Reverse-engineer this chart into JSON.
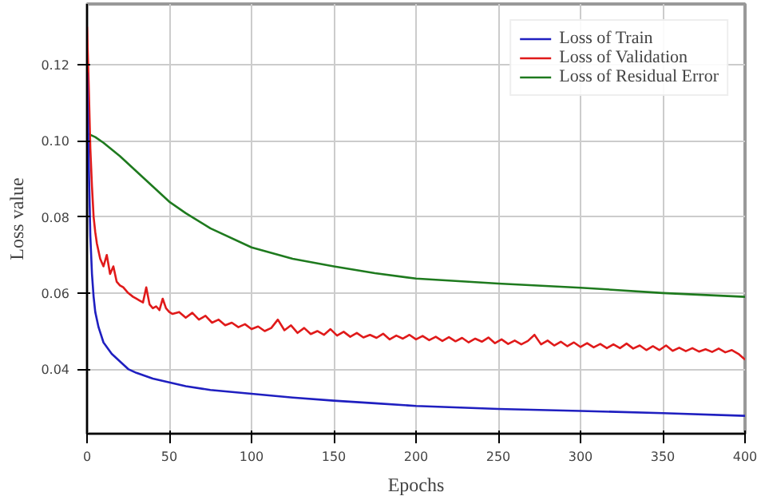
{
  "chart_data": {
    "type": "line",
    "xlabel": "Epochs",
    "ylabel": "Loss value",
    "xlim": [
      0,
      400
    ],
    "xticks": [
      0,
      50,
      100,
      150,
      200,
      250,
      300,
      350,
      400
    ],
    "ylim": [
      0.023,
      0.136
    ],
    "yticks": [
      {
        "value": 0.04,
        "label": "0.04"
      },
      {
        "value": 0.06,
        "label": "0.06"
      },
      {
        "value": 0.08,
        "label": "0.08"
      },
      {
        "value": 0.1,
        "label": "0.10"
      },
      {
        "value": 0.12,
        "label": "0.12"
      }
    ],
    "grid": true,
    "legend": "top right",
    "line_style": "solid",
    "marker": "none",
    "series": [
      {
        "name": "Loss of Train",
        "color": "#1f1fc0",
        "x": [
          0,
          1,
          2,
          3,
          4,
          5,
          7,
          10,
          15,
          20,
          25,
          30,
          40,
          50,
          60,
          75,
          100,
          125,
          150,
          175,
          200,
          250,
          300,
          350,
          400
        ],
        "values": [
          0.118,
          0.095,
          0.075,
          0.065,
          0.059,
          0.055,
          0.051,
          0.047,
          0.044,
          0.042,
          0.04,
          0.039,
          0.0375,
          0.0365,
          0.0355,
          0.0345,
          0.0335,
          0.0325,
          0.0317,
          0.031,
          0.0303,
          0.0295,
          0.029,
          0.0284,
          0.0277
        ]
      },
      {
        "name": "Loss of Validation",
        "color": "#e01a1a",
        "x": [
          0,
          1,
          2,
          3,
          4,
          5,
          6,
          8,
          10,
          12,
          14,
          16,
          18,
          20,
          22,
          25,
          28,
          30,
          32,
          34,
          36,
          38,
          40,
          42,
          44,
          46,
          48,
          50,
          52,
          56,
          60,
          64,
          68,
          72,
          76,
          80,
          84,
          88,
          92,
          96,
          100,
          104,
          108,
          112,
          116,
          120,
          124,
          128,
          132,
          136,
          140,
          144,
          148,
          152,
          156,
          160,
          164,
          168,
          172,
          176,
          180,
          184,
          188,
          192,
          196,
          200,
          204,
          208,
          212,
          216,
          220,
          224,
          228,
          232,
          236,
          240,
          244,
          248,
          252,
          256,
          260,
          264,
          268,
          272,
          276,
          280,
          284,
          288,
          292,
          296,
          300,
          304,
          308,
          312,
          316,
          320,
          324,
          328,
          332,
          336,
          340,
          344,
          348,
          352,
          356,
          360,
          364,
          368,
          372,
          376,
          380,
          384,
          388,
          392,
          396,
          400
        ],
        "values": [
          0.13,
          0.115,
          0.098,
          0.088,
          0.08,
          0.076,
          0.073,
          0.069,
          0.067,
          0.07,
          0.065,
          0.067,
          0.063,
          0.062,
          0.0615,
          0.06,
          0.059,
          0.0585,
          0.058,
          0.0575,
          0.0615,
          0.057,
          0.056,
          0.0565,
          0.0555,
          0.0585,
          0.056,
          0.055,
          0.0545,
          0.055,
          0.0535,
          0.0548,
          0.053,
          0.054,
          0.0522,
          0.053,
          0.0515,
          0.0522,
          0.051,
          0.0518,
          0.0505,
          0.0512,
          0.05,
          0.0508,
          0.053,
          0.0502,
          0.0515,
          0.0495,
          0.0508,
          0.0492,
          0.05,
          0.049,
          0.0505,
          0.0488,
          0.0498,
          0.0485,
          0.0495,
          0.0483,
          0.049,
          0.0482,
          0.0493,
          0.0478,
          0.0488,
          0.048,
          0.049,
          0.0478,
          0.0487,
          0.0476,
          0.0485,
          0.0474,
          0.0484,
          0.0473,
          0.0482,
          0.047,
          0.048,
          0.0472,
          0.0483,
          0.0468,
          0.0478,
          0.0466,
          0.0475,
          0.0465,
          0.0474,
          0.049,
          0.0465,
          0.0475,
          0.0462,
          0.0472,
          0.046,
          0.047,
          0.0458,
          0.0468,
          0.0457,
          0.0466,
          0.0455,
          0.0465,
          0.0455,
          0.0467,
          0.0454,
          0.0462,
          0.045,
          0.046,
          0.045,
          0.0462,
          0.0448,
          0.0456,
          0.0447,
          0.0455,
          0.0446,
          0.0452,
          0.0445,
          0.0454,
          0.0444,
          0.045,
          0.044,
          0.0425
        ]
      },
      {
        "name": "Loss of Residual Error",
        "color": "#1e7a1e",
        "x": [
          0,
          5,
          10,
          20,
          30,
          40,
          50,
          60,
          75,
          100,
          125,
          150,
          175,
          200,
          250,
          300,
          350,
          400
        ],
        "values": [
          0.102,
          0.101,
          0.0995,
          0.096,
          0.092,
          0.088,
          0.084,
          0.081,
          0.077,
          0.072,
          0.069,
          0.067,
          0.0652,
          0.0638,
          0.0625,
          0.0614,
          0.06,
          0.059
        ]
      }
    ]
  }
}
